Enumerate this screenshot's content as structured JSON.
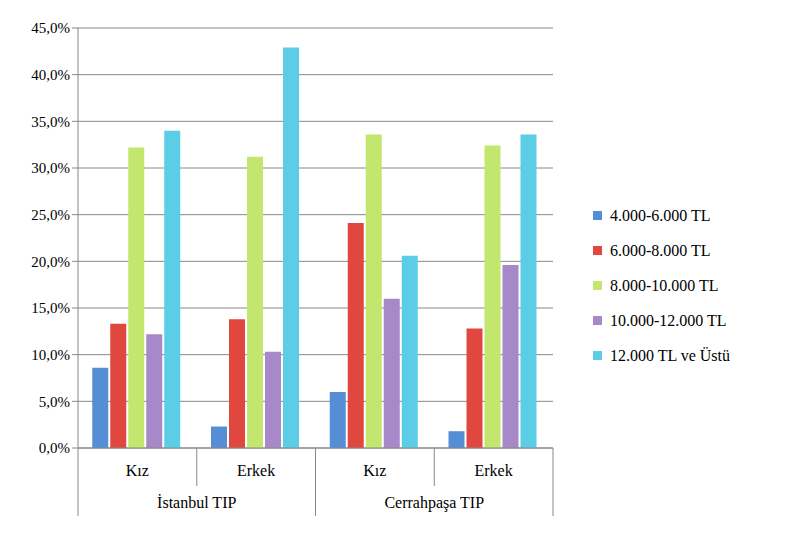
{
  "chart_data": {
    "type": "bar",
    "categories": [
      "Kız",
      "Erkek",
      "Kız",
      "Erkek"
    ],
    "category_groups": [
      "İstanbul TIP",
      "İstanbul TIP",
      "Cerrahpaşa TIP",
      "Cerrahpaşa TIP"
    ],
    "series": [
      {
        "name": "4.000-6.000 TL",
        "color": "#558ED5",
        "values": [
          8.6,
          2.3,
          6.0,
          1.8
        ]
      },
      {
        "name": "6.000-8.000 TL",
        "color": "#E0473F",
        "values": [
          13.3,
          13.8,
          24.1,
          12.8
        ]
      },
      {
        "name": "8.000-10.000 TL",
        "color": "#C3E66E",
        "values": [
          32.2,
          31.2,
          33.6,
          32.4
        ]
      },
      {
        "name": "10.000-12.000 TL",
        "color": "#A788C8",
        "values": [
          12.2,
          10.3,
          16.0,
          19.6
        ]
      },
      {
        "name": "12.000 TL ve Üstü",
        "color": "#5BCDE6",
        "values": [
          34.0,
          42.9,
          20.6,
          33.6
        ]
      }
    ],
    "ylim": [
      0,
      45
    ],
    "yticks": [
      {
        "value": 0,
        "label": "0,0%"
      },
      {
        "value": 5,
        "label": "5,0%"
      },
      {
        "value": 10,
        "label": "10,0%"
      },
      {
        "value": 15,
        "label": "15,0%"
      },
      {
        "value": 20,
        "label": "20,0%"
      },
      {
        "value": 25,
        "label": "25,0%"
      },
      {
        "value": 30,
        "label": "30,0%"
      },
      {
        "value": 35,
        "label": "35,0%"
      },
      {
        "value": 40,
        "label": "40,0%"
      },
      {
        "value": 45,
        "label": "45,0%"
      }
    ],
    "grid": true
  }
}
